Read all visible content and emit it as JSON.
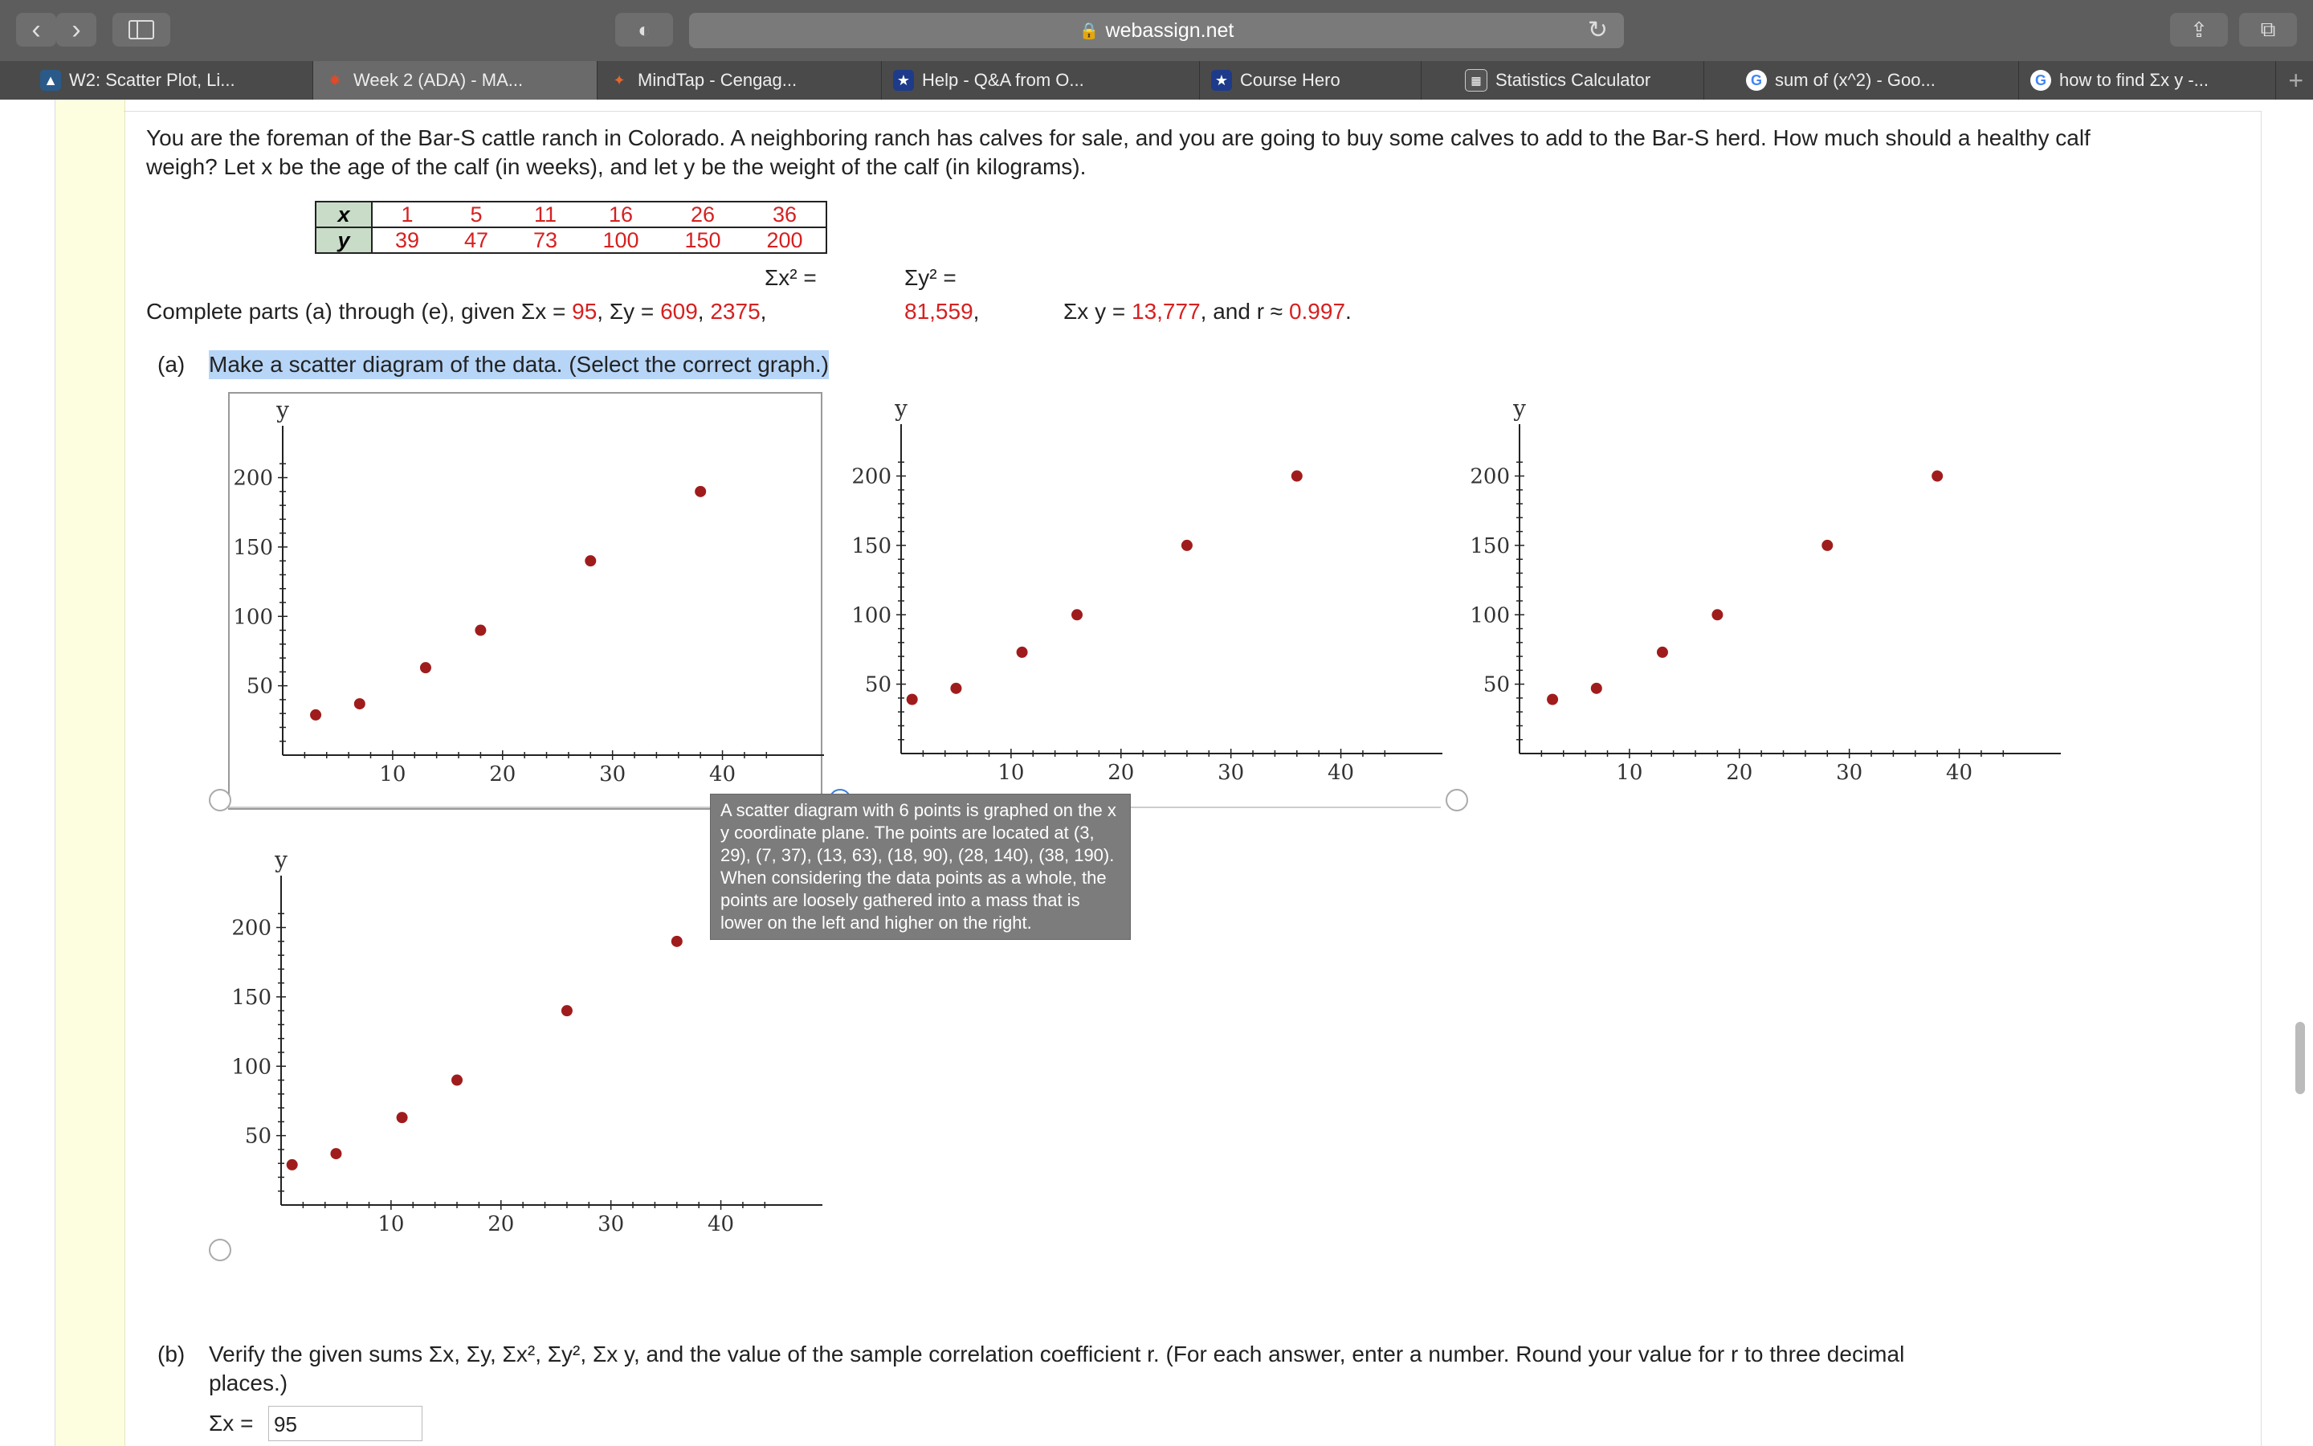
{
  "browser": {
    "url": "webassign.net",
    "tabs": [
      {
        "label": "W2: Scatter Plot, Li...",
        "icon": "webassign-icon"
      },
      {
        "label": "Week 2 (ADA) - MA...",
        "icon": "canvas-icon"
      },
      {
        "label": "MindTap - Cengag...",
        "icon": "mindtap-icon"
      },
      {
        "label": "Help - Q&A from O...",
        "icon": "star-icon"
      },
      {
        "label": "Course Hero",
        "icon": "star-icon"
      },
      {
        "label": "Statistics Calculator",
        "icon": "calculator-icon"
      },
      {
        "label": "sum of (x^2) - Goo...",
        "icon": "google-icon"
      },
      {
        "label": "how to find Σx y -...",
        "icon": "google-icon"
      }
    ]
  },
  "problem": {
    "intro_line1": "You are the foreman of the Bar-S cattle ranch in Colorado. A neighboring ranch has calves for sale, and you are going to buy some calves to add to the Bar-S herd. How much should a healthy calf",
    "intro_line2": "weigh? Let x be the age of the calf (in weeks), and let y be the weight of the calf (in kilograms).",
    "table": {
      "x_label": "x",
      "y_label": "y",
      "x": [
        "1",
        "5",
        "11",
        "16",
        "26",
        "36"
      ],
      "y": [
        "39",
        "47",
        "73",
        "100",
        "150",
        "200"
      ]
    },
    "given": {
      "prefix": "Complete parts (a) through (e), given",
      "sum_x_label": "Σx =",
      "sum_x": "95",
      "sum_y_label": "Σy =",
      "sum_y": "609",
      "sum_x2_label": "Σx² =",
      "sum_x2": "2375",
      "sum_y2_label": "Σy² =",
      "sum_y2": "81,559",
      "sum_xy_label": "Σx y =",
      "sum_xy": "13,777",
      "r_label": "and r ≈",
      "r": "0.997"
    },
    "part_a": {
      "label": "(a)",
      "text": "Make a scatter diagram of the data. (Select the correct graph.)"
    },
    "tooltip": "A scatter diagram with 6 points is graphed on the x y coordinate plane. The points are located at (3, 29), (7, 37), (13, 63), (18, 90), (28, 140), (38, 190). When considering the data points as a whole, the points are loosely gathered into a mass that is lower on the left and higher on the right.",
    "part_b": {
      "label": "(b)",
      "text_line1": "Verify the given sums Σx, Σy, Σx², Σy², Σx y, and the value of the sample correlation coefficient r. (For each answer, enter a number. Round your value for r to three decimal",
      "text_line2": "places.)",
      "sum_x_label": "Σx =",
      "sum_x_value": "95"
    }
  },
  "graph_options": [
    {
      "x": [
        3,
        7,
        13,
        18,
        28,
        38
      ],
      "y": [
        29,
        37,
        63,
        90,
        140,
        190
      ]
    },
    {
      "x": [
        1,
        5,
        11,
        16,
        26,
        36
      ],
      "y": [
        39,
        47,
        73,
        100,
        150,
        200
      ]
    },
    {
      "x": [
        3,
        7,
        13,
        18,
        28,
        38
      ],
      "y": [
        39,
        47,
        73,
        100,
        150,
        200
      ]
    },
    {
      "x": [
        1,
        5,
        11,
        16,
        26,
        36
      ],
      "y": [
        29,
        37,
        63,
        90,
        140,
        190
      ]
    }
  ],
  "graph_axes": {
    "x_label": "x",
    "y_label": "y",
    "x_ticks": [
      "10",
      "20",
      "30",
      "40"
    ],
    "y_ticks": [
      "50",
      "100",
      "150",
      "200"
    ],
    "xlim": [
      0,
      45
    ],
    "ylim": [
      0,
      220
    ]
  },
  "colors": {
    "point": "#a01c1c",
    "red_text": "#d62020"
  }
}
